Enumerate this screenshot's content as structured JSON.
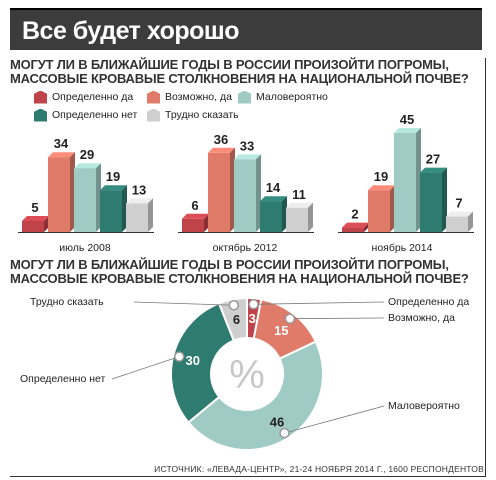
{
  "title": "Все будет хорошо",
  "question1": "МОГУТ ЛИ В БЛИЖАЙШИЕ ГОДЫ В РОССИИ ПРОИЗОЙТИ ПОГРОМЫ, МАССОВЫЕ КРОВАВЫЕ СТОЛКНОВЕНИЯ НА НАЦИОНАЛЬНОЙ ПОЧВЕ?",
  "question2": "МОГУТ ЛИ В БЛИЖАЙШИЕ ГОДЫ В РОССИИ ПРОИЗОЙТИ ПОГРОМЫ, МАССОВЫЕ КРОВАВЫЕ СТОЛКНОВЕНИЯ НА НАЦИОНАЛЬНОЙ ПОЧВЕ?",
  "legend": [
    {
      "label": "Определенно да",
      "color": "#c0434a"
    },
    {
      "label": "Возможно, да",
      "color": "#e07b69"
    },
    {
      "label": "Маловероятно",
      "color": "#9fcbc4"
    },
    {
      "label": "Определенно нет",
      "color": "#2e7b70"
    },
    {
      "label": "Трудно сказать",
      "color": "#cfcfcf"
    }
  ],
  "source": "ИСТОЧНИК: «ЛЕВАДА-ЦЕНТР», 21-24 НОЯБРЯ 2014 Г., 1600 РЕСПОНДЕНТОВ",
  "chart_data": [
    {
      "type": "bar",
      "categories": [
        "июль 2008",
        "октябрь 2012",
        "ноябрь 2014"
      ],
      "series": [
        {
          "name": "Определенно да",
          "values": [
            5,
            6,
            2
          ]
        },
        {
          "name": "Возможно, да",
          "values": [
            34,
            36,
            19
          ]
        },
        {
          "name": "Маловероятно",
          "values": [
            29,
            33,
            45
          ]
        },
        {
          "name": "Определенно нет",
          "values": [
            19,
            14,
            27
          ]
        },
        {
          "name": "Трудно сказать",
          "values": [
            13,
            11,
            7
          ]
        }
      ],
      "legend": "top"
    },
    {
      "type": "pie",
      "donut_center_label": "%",
      "slices": [
        {
          "label": "Определенно да",
          "value": 3
        },
        {
          "label": "Возможно, да",
          "value": 15
        },
        {
          "label": "Маловероятно",
          "value": 46
        },
        {
          "label": "Определенно нет",
          "value": 30
        },
        {
          "label": "Трудно сказать",
          "value": 6
        }
      ]
    }
  ]
}
